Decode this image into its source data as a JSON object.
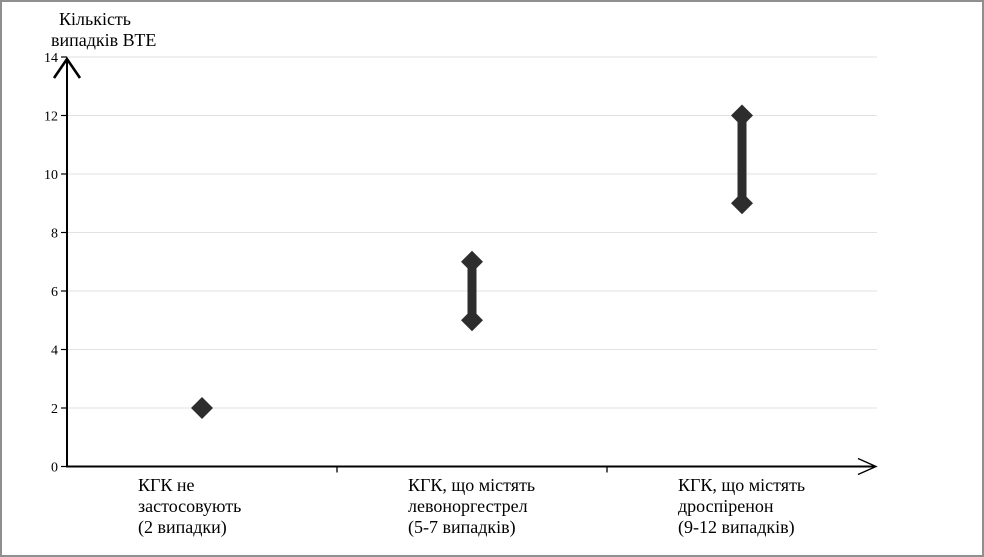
{
  "frame": {
    "background": "#ffffff",
    "border_color": "#8f8f8f"
  },
  "chart_data": {
    "type": "scatter",
    "subtype": "range-dot-plot",
    "title": "Кількість випадків ВТЕ",
    "title_lines": [
      "Кількість",
      "випадків ВТЕ"
    ],
    "xlabel": "",
    "ylabel": "Кількість випадків ВТЕ",
    "ylim": [
      0,
      14
    ],
    "yticks": [
      0,
      2,
      4,
      6,
      8,
      10,
      12,
      14
    ],
    "grid": true,
    "legend": "none",
    "categories": [
      {
        "label": "КГК не застосовують (2 випадки)",
        "label_lines": [
          "КГК не",
          "застосовують",
          "(2 випадки)"
        ],
        "values": [
          2
        ]
      },
      {
        "label": "КГК, що містять левоноргестрел (5-7 випадків)",
        "label_lines": [
          "КГК, що містять",
          "левоноргестрел",
          "(5-7 випадків)"
        ],
        "values": [
          5,
          7
        ]
      },
      {
        "label": "КГК, що містять дроспіренон (9-12 випадків)",
        "label_lines": [
          "КГК, що містять",
          "дроспіренон",
          "(9-12 випадків)"
        ],
        "values": [
          9,
          12
        ]
      }
    ],
    "marker": "diamond",
    "marker_color": "#2d2d2d",
    "range_bar_color": "#2d2d2d",
    "grid_color": "#e2e2e2",
    "axis_color": "#000000",
    "text_color": "#000000"
  }
}
